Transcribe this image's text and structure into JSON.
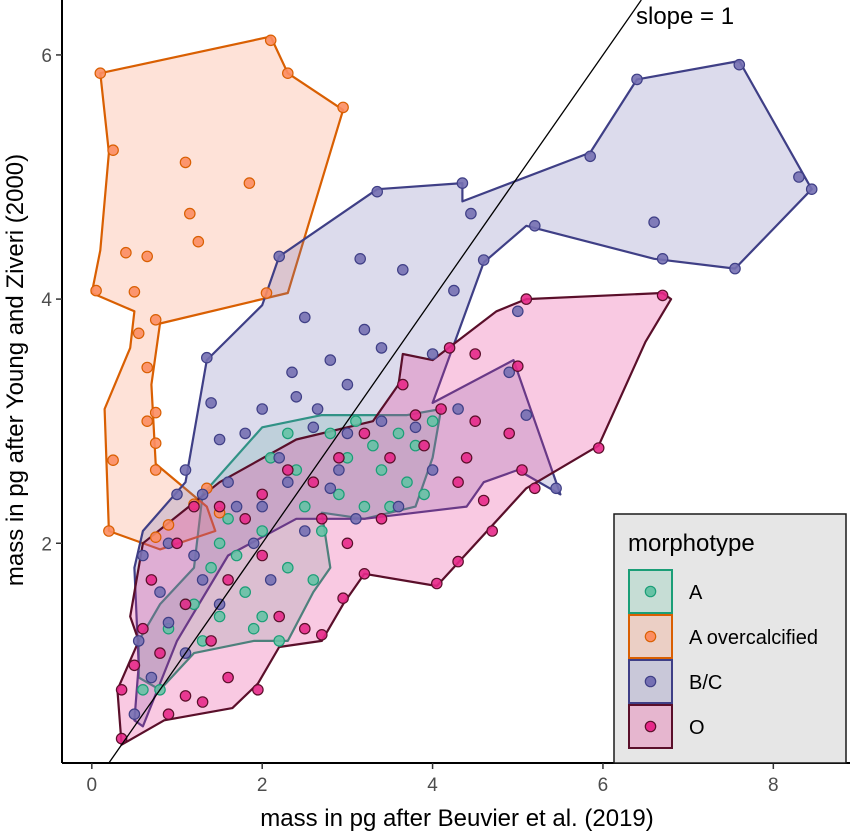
{
  "chart_data": {
    "type": "scatter",
    "xlabel": "mass in pg after Beuvier et al. (2019)",
    "ylabel": "mass in pg after Young and Ziveri (2000)",
    "xlim": [
      -0.35,
      8.9
    ],
    "ylim": [
      0.2,
      6.45
    ],
    "x_ticks": [
      0,
      2,
      4,
      6,
      8
    ],
    "y_ticks": [
      2,
      4,
      6
    ],
    "grid": false,
    "legend": {
      "title": "morphotype",
      "position": "bottom-right"
    },
    "reference_line": {
      "label": "slope = 1",
      "slope": 1,
      "intercept": 0
    },
    "series": [
      {
        "name": "A",
        "color": "#1b9e77",
        "fill": "#66c2a5",
        "hull": [
          [
            0.55,
            0.9
          ],
          [
            0.55,
            1.2
          ],
          [
            0.8,
            1.5
          ],
          [
            1.2,
            1.8
          ],
          [
            1.3,
            2.4
          ],
          [
            2.0,
            2.95
          ],
          [
            2.7,
            3.05
          ],
          [
            3.7,
            3.05
          ],
          [
            4.1,
            3.1
          ],
          [
            4.0,
            2.7
          ],
          [
            3.8,
            2.3
          ],
          [
            3.2,
            2.2
          ],
          [
            2.7,
            2.25
          ],
          [
            2.8,
            1.8
          ],
          [
            2.6,
            1.6
          ],
          [
            2.3,
            1.2
          ],
          [
            1.9,
            1.2
          ],
          [
            1.2,
            1.1
          ],
          [
            0.8,
            0.8
          ]
        ],
        "points": [
          [
            0.6,
            0.8
          ],
          [
            0.8,
            0.8
          ],
          [
            0.9,
            1.3
          ],
          [
            1.2,
            1.5
          ],
          [
            1.3,
            1.2
          ],
          [
            1.5,
            1.4
          ],
          [
            1.4,
            1.8
          ],
          [
            1.5,
            2.0
          ],
          [
            1.6,
            2.2
          ],
          [
            1.8,
            1.6
          ],
          [
            1.9,
            1.3
          ],
          [
            2.0,
            1.4
          ],
          [
            2.1,
            2.7
          ],
          [
            2.2,
            1.2
          ],
          [
            2.3,
            1.8
          ],
          [
            2.4,
            2.6
          ],
          [
            2.5,
            2.3
          ],
          [
            2.6,
            1.7
          ],
          [
            2.7,
            2.1
          ],
          [
            2.8,
            2.9
          ],
          [
            2.9,
            2.4
          ],
          [
            3.0,
            2.7
          ],
          [
            3.2,
            2.3
          ],
          [
            3.3,
            2.8
          ],
          [
            3.4,
            2.6
          ],
          [
            3.6,
            2.9
          ],
          [
            3.7,
            2.5
          ],
          [
            3.8,
            2.8
          ],
          [
            3.9,
            2.4
          ],
          [
            4.0,
            3.0
          ],
          [
            3.5,
            2.3
          ],
          [
            2.0,
            2.1
          ],
          [
            1.7,
            1.9
          ],
          [
            2.3,
            2.9
          ],
          [
            3.1,
            3.0
          ],
          [
            1.1,
            1.5
          ]
        ]
      },
      {
        "name": "A overcalcified",
        "color": "#d95f02",
        "fill": "#fc8d62",
        "hull": [
          [
            0.1,
            5.85
          ],
          [
            2.1,
            6.15
          ],
          [
            2.3,
            5.85
          ],
          [
            2.95,
            5.55
          ],
          [
            2.3,
            4.05
          ],
          [
            0.8,
            3.8
          ],
          [
            0.7,
            3.3
          ],
          [
            0.75,
            2.65
          ],
          [
            1.35,
            2.3
          ],
          [
            1.45,
            2.1
          ],
          [
            0.8,
            1.95
          ],
          [
            0.2,
            2.1
          ],
          [
            0.15,
            3.1
          ],
          [
            0.45,
            3.6
          ],
          [
            0.5,
            3.9
          ],
          [
            0.0,
            4.05
          ],
          [
            0.1,
            4.4
          ],
          [
            0.2,
            5.2
          ]
        ],
        "points": [
          [
            0.1,
            5.85
          ],
          [
            2.1,
            6.12
          ],
          [
            2.3,
            5.85
          ],
          [
            2.95,
            5.57
          ],
          [
            0.25,
            5.22
          ],
          [
            1.1,
            5.12
          ],
          [
            1.85,
            4.95
          ],
          [
            1.15,
            4.7
          ],
          [
            1.25,
            4.47
          ],
          [
            0.4,
            4.38
          ],
          [
            0.65,
            4.35
          ],
          [
            0.5,
            4.06
          ],
          [
            0.05,
            4.07
          ],
          [
            2.05,
            4.05
          ],
          [
            0.55,
            3.72
          ],
          [
            0.75,
            3.83
          ],
          [
            0.65,
            3.44
          ],
          [
            0.65,
            3.0
          ],
          [
            0.75,
            3.07
          ],
          [
            0.75,
            2.82
          ],
          [
            0.25,
            2.68
          ],
          [
            0.75,
            2.6
          ],
          [
            1.2,
            2.32
          ],
          [
            1.5,
            2.25
          ],
          [
            0.2,
            2.1
          ],
          [
            0.75,
            2.05
          ],
          [
            0.9,
            2.15
          ],
          [
            1.35,
            2.45
          ]
        ]
      },
      {
        "name": "B/C",
        "color": "#3f3f86",
        "fill": "#7570b3",
        "hull": [
          [
            0.5,
            0.55
          ],
          [
            0.55,
            1.0
          ],
          [
            0.5,
            1.8
          ],
          [
            0.6,
            2.1
          ],
          [
            1.1,
            2.5
          ],
          [
            1.35,
            3.5
          ],
          [
            2.0,
            3.95
          ],
          [
            2.2,
            4.35
          ],
          [
            3.35,
            4.9
          ],
          [
            4.35,
            4.95
          ],
          [
            4.35,
            4.8
          ],
          [
            5.85,
            5.2
          ],
          [
            6.4,
            5.8
          ],
          [
            7.6,
            5.95
          ],
          [
            8.45,
            4.9
          ],
          [
            7.55,
            4.25
          ],
          [
            6.6,
            4.33
          ],
          [
            5.1,
            4.6
          ],
          [
            4.6,
            4.3
          ],
          [
            4.0,
            3.15
          ],
          [
            4.95,
            3.5
          ],
          [
            5.1,
            3.2
          ],
          [
            5.5,
            2.4
          ],
          [
            5.0,
            2.6
          ],
          [
            4.6,
            2.5
          ],
          [
            4.4,
            2.3
          ],
          [
            3.2,
            2.2
          ],
          [
            2.4,
            2.2
          ],
          [
            1.6,
            1.9
          ],
          [
            1.0,
            1.2
          ],
          [
            0.6,
            0.5
          ]
        ],
        "points": [
          [
            6.4,
            5.8
          ],
          [
            7.6,
            5.92
          ],
          [
            8.45,
            4.9
          ],
          [
            5.85,
            5.17
          ],
          [
            3.35,
            4.88
          ],
          [
            4.35,
            4.95
          ],
          [
            4.45,
            4.7
          ],
          [
            5.2,
            4.6
          ],
          [
            6.6,
            4.63
          ],
          [
            6.7,
            4.33
          ],
          [
            7.55,
            4.25
          ],
          [
            8.3,
            5.0
          ],
          [
            2.2,
            4.35
          ],
          [
            3.15,
            4.33
          ],
          [
            3.65,
            4.24
          ],
          [
            4.6,
            4.32
          ],
          [
            5.0,
            3.9
          ],
          [
            4.25,
            4.07
          ],
          [
            1.35,
            3.52
          ],
          [
            2.5,
            3.85
          ],
          [
            3.2,
            3.75
          ],
          [
            3.4,
            3.6
          ],
          [
            4.0,
            3.55
          ],
          [
            2.8,
            3.5
          ],
          [
            3.0,
            3.3
          ],
          [
            2.4,
            3.2
          ],
          [
            2.0,
            3.1
          ],
          [
            1.4,
            3.15
          ],
          [
            1.5,
            2.85
          ],
          [
            1.8,
            2.9
          ],
          [
            2.2,
            2.7
          ],
          [
            2.6,
            2.95
          ],
          [
            2.9,
            2.6
          ],
          [
            3.4,
            3.0
          ],
          [
            3.8,
            2.95
          ],
          [
            4.3,
            3.1
          ],
          [
            4.9,
            3.4
          ],
          [
            5.1,
            3.05
          ],
          [
            5.45,
            2.45
          ],
          [
            1.1,
            2.6
          ],
          [
            1.3,
            2.4
          ],
          [
            1.6,
            2.5
          ],
          [
            0.9,
            2.0
          ],
          [
            1.0,
            2.4
          ],
          [
            0.6,
            1.9
          ],
          [
            0.8,
            1.6
          ],
          [
            1.2,
            1.9
          ],
          [
            1.5,
            1.5
          ],
          [
            1.9,
            2.0
          ],
          [
            2.1,
            1.7
          ],
          [
            2.5,
            2.1
          ],
          [
            2.8,
            2.45
          ],
          [
            3.1,
            2.2
          ],
          [
            0.55,
            1.2
          ],
          [
            0.7,
            0.9
          ],
          [
            0.9,
            1.35
          ],
          [
            1.1,
            1.1
          ],
          [
            1.3,
            1.7
          ],
          [
            1.7,
            2.3
          ],
          [
            2.3,
            2.5
          ],
          [
            2.0,
            2.3
          ],
          [
            0.5,
            0.6
          ],
          [
            3.6,
            2.3
          ],
          [
            4.0,
            2.6
          ],
          [
            3.0,
            2.9
          ],
          [
            2.65,
            3.1
          ],
          [
            2.35,
            3.4
          ]
        ]
      },
      {
        "name": "O",
        "color": "#5a0f2a",
        "fill": "#e7298a",
        "hull": [
          [
            0.35,
            0.35
          ],
          [
            0.3,
            0.8
          ],
          [
            0.55,
            1.2
          ],
          [
            0.45,
            1.4
          ],
          [
            0.6,
            2.0
          ],
          [
            1.5,
            2.5
          ],
          [
            2.4,
            2.85
          ],
          [
            3.3,
            3.0
          ],
          [
            3.6,
            3.3
          ],
          [
            3.65,
            3.55
          ],
          [
            4.0,
            3.5
          ],
          [
            4.75,
            3.9
          ],
          [
            5.1,
            4.0
          ],
          [
            6.7,
            4.05
          ],
          [
            6.8,
            4.0
          ],
          [
            6.5,
            3.65
          ],
          [
            5.95,
            2.8
          ],
          [
            5.1,
            2.45
          ],
          [
            4.05,
            1.65
          ],
          [
            3.2,
            1.75
          ],
          [
            2.95,
            1.5
          ],
          [
            2.7,
            1.2
          ],
          [
            2.2,
            1.15
          ],
          [
            1.95,
            0.85
          ],
          [
            1.65,
            0.65
          ],
          [
            0.85,
            0.55
          ],
          [
            0.35,
            0.35
          ]
        ],
        "points": [
          [
            6.7,
            4.03
          ],
          [
            5.1,
            4.0
          ],
          [
            4.2,
            3.6
          ],
          [
            4.5,
            3.55
          ],
          [
            5.0,
            3.45
          ],
          [
            3.65,
            3.3
          ],
          [
            3.8,
            3.05
          ],
          [
            4.1,
            3.1
          ],
          [
            4.5,
            3.0
          ],
          [
            4.9,
            2.9
          ],
          [
            5.05,
            2.6
          ],
          [
            5.95,
            2.78
          ],
          [
            5.2,
            2.45
          ],
          [
            4.6,
            2.35
          ],
          [
            4.3,
            2.5
          ],
          [
            4.4,
            2.7
          ],
          [
            3.9,
            2.8
          ],
          [
            3.5,
            2.7
          ],
          [
            3.2,
            2.9
          ],
          [
            2.9,
            2.7
          ],
          [
            2.6,
            2.5
          ],
          [
            2.3,
            2.6
          ],
          [
            2.0,
            2.4
          ],
          [
            1.8,
            2.2
          ],
          [
            1.5,
            2.3
          ],
          [
            1.2,
            2.3
          ],
          [
            1.0,
            2.0
          ],
          [
            0.7,
            1.7
          ],
          [
            0.6,
            1.3
          ],
          [
            0.5,
            1.0
          ],
          [
            0.35,
            0.4
          ],
          [
            0.35,
            0.8
          ],
          [
            0.9,
            0.6
          ],
          [
            1.1,
            0.75
          ],
          [
            1.3,
            0.7
          ],
          [
            1.6,
            0.9
          ],
          [
            1.95,
            0.8
          ],
          [
            2.2,
            1.4
          ],
          [
            2.5,
            1.3
          ],
          [
            2.7,
            1.25
          ],
          [
            2.95,
            1.55
          ],
          [
            3.2,
            1.75
          ],
          [
            4.05,
            1.67
          ],
          [
            4.3,
            1.85
          ],
          [
            4.7,
            2.1
          ],
          [
            3.4,
            2.2
          ],
          [
            3.0,
            2.0
          ],
          [
            2.7,
            2.2
          ],
          [
            1.6,
            1.7
          ],
          [
            1.4,
            1.2
          ],
          [
            2.0,
            1.9
          ],
          [
            1.1,
            1.5
          ],
          [
            0.8,
            1.1
          ]
        ]
      }
    ]
  }
}
